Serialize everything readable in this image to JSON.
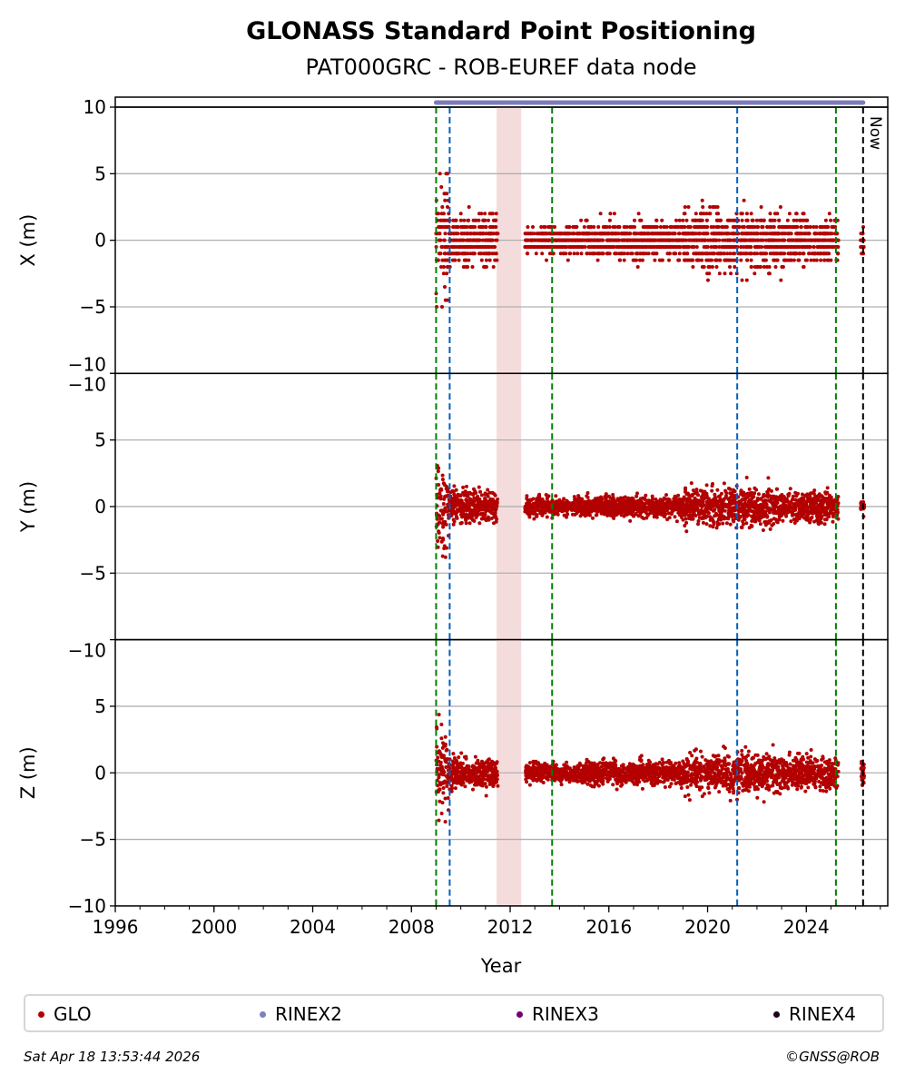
{
  "chart_data": {
    "type": "scatter",
    "title": "GLONASS Standard Point Positioning",
    "subtitle": "PAT000GRC - ROB-EUREF data node",
    "xlabel": "Year",
    "xlim": [
      1996,
      2027.3
    ],
    "xticks": [
      "1996",
      "2000",
      "2004",
      "2008",
      "2012",
      "2016",
      "2020",
      "2024"
    ],
    "xtick_values": [
      1996,
      2000,
      2004,
      2008,
      2012,
      2016,
      2020,
      2024
    ],
    "grid": true,
    "panels": [
      {
        "ylabel": "X (m)",
        "ylim": [
          -10,
          10
        ],
        "yticks": [
          "10",
          "5",
          "0",
          "−5",
          "−10"
        ],
        "ytick_values": [
          10,
          5,
          0,
          -5,
          -10
        ],
        "quantized": true
      },
      {
        "ylabel": "Y (m)",
        "ylim": [
          -10,
          10
        ],
        "yticks": [
          "−10",
          "5",
          "0",
          "−5"
        ],
        "ytick_values": [
          10,
          5,
          0,
          -5
        ],
        "top_label": "−10",
        "quantized": false
      },
      {
        "ylabel": "Z (m)",
        "ylim": [
          -10,
          10
        ],
        "yticks": [
          "−10",
          "5",
          "0",
          "−5",
          "−10"
        ],
        "ytick_values": [
          10,
          5,
          0,
          -5,
          -10
        ],
        "top_label": "−10",
        "quantized": false
      }
    ],
    "series_segments": [
      {
        "start": 2009.0,
        "end": 2009.5,
        "spread": [
          3.5,
          3.0,
          3.0
        ]
      },
      {
        "start": 2009.5,
        "end": 2011.5,
        "spread": [
          1.6,
          1.1,
          1.0
        ]
      },
      {
        "start": 2012.6,
        "end": 2015.0,
        "spread": [
          0.9,
          0.6,
          0.6
        ]
      },
      {
        "start": 2015.0,
        "end": 2019.0,
        "spread": [
          1.2,
          0.7,
          0.8
        ]
      },
      {
        "start": 2019.0,
        "end": 2023.0,
        "spread": [
          2.0,
          1.3,
          1.3
        ]
      },
      {
        "start": 2023.0,
        "end": 2025.3,
        "spread": [
          1.6,
          1.0,
          1.1
        ]
      },
      {
        "start": 2026.2,
        "end": 2026.35,
        "spread": [
          1.0,
          0.5,
          1.0
        ]
      }
    ],
    "vertical_lines": [
      {
        "x": 2009.0,
        "color": "#008000",
        "style": "dashed"
      },
      {
        "x": 2009.55,
        "color": "#0060c0",
        "style": "dashed"
      },
      {
        "x": 2013.7,
        "color": "#008000",
        "style": "dashed"
      },
      {
        "x": 2021.2,
        "color": "#0060c0",
        "style": "dashed"
      },
      {
        "x": 2025.2,
        "color": "#008000",
        "style": "dashed"
      },
      {
        "x": 2026.3,
        "color": "#000000",
        "style": "dashed",
        "label": "Now"
      }
    ],
    "shaded_spans": [
      {
        "start": 2011.45,
        "end": 2012.45,
        "color": "#f5dcdc"
      }
    ],
    "rinex_bar": {
      "name": "RINEX2",
      "start": 2009.0,
      "end": 2026.3,
      "color": "#7b7bbb"
    },
    "legend": [
      {
        "name": "GLO",
        "color": "#b30000"
      },
      {
        "name": "RINEX2",
        "color": "#8080c0"
      },
      {
        "name": "RINEX3",
        "color": "#700070"
      },
      {
        "name": "RINEX4",
        "color": "#200020"
      }
    ],
    "legend_placement": "bottom"
  },
  "footer": {
    "timestamp": "Sat Apr 18 13:53:44 2026",
    "credit": "©GNSS@ROB"
  }
}
